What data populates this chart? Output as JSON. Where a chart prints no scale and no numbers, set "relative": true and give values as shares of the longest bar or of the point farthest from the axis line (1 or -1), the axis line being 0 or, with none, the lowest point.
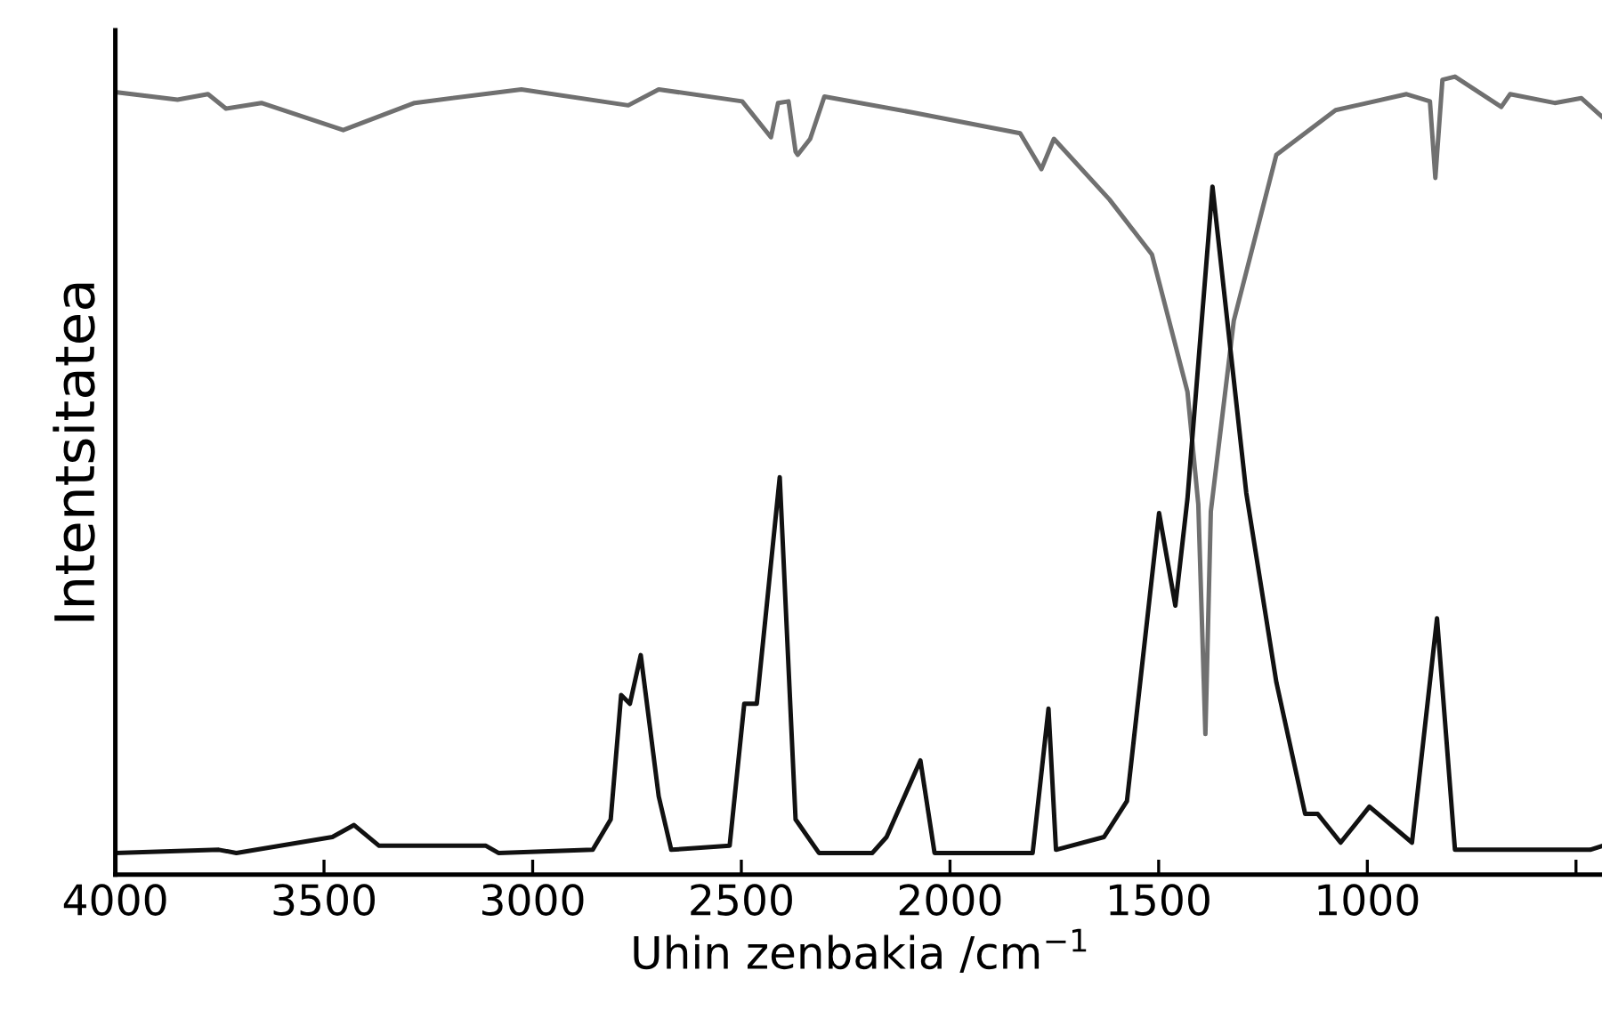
{
  "chart_data": {
    "type": "line",
    "relative": true,
    "xlabel": "Uhin zenbakia /cm$^{−1}$",
    "ylabel": "Intentsitatea",
    "xlim": [
      4000,
      430
    ],
    "xticks": [
      4000,
      3500,
      3000,
      2500,
      2000,
      1500,
      1000,
      {
        "value": 500,
        "label": null
      }
    ],
    "tick_labels": "x",
    "grid": false,
    "legend": false,
    "marker": "none",
    "line_style": "solid",
    "series": [
      {
        "color": "#707070",
        "x": [
          3991,
          3851,
          3778,
          3735,
          3650,
          3454,
          3283,
          3027,
          2771,
          2698,
          2498,
          2429,
          2412,
          2387,
          2370,
          2365,
          2335,
          2301,
          2088,
          1832,
          1781,
          1751,
          1618,
          1516,
          1431,
          1405,
          1388,
          1375,
          1320,
          1218,
          1076,
          906,
          850,
          837,
          820,
          790,
          679,
          658,
          551,
          487,
          436
        ],
        "values": [
          0.98,
          0.971,
          0.978,
          0.96,
          0.967,
          0.933,
          0.967,
          0.984,
          0.964,
          0.984,
          0.969,
          0.924,
          0.967,
          0.969,
          0.906,
          0.902,
          0.922,
          0.975,
          0.955,
          0.929,
          0.884,
          0.922,
          0.846,
          0.777,
          0.605,
          0.464,
          0.176,
          0.455,
          0.694,
          0.902,
          0.958,
          0.978,
          0.969,
          0.873,
          0.996,
          1.0,
          0.962,
          0.978,
          0.967,
          0.973,
          0.949
        ]
      },
      {
        "color": "#111111",
        "x": [
          4000,
          3752,
          3710,
          3480,
          3428,
          3368,
          3112,
          3082,
          2856,
          2813,
          2788,
          2767,
          2741,
          2698,
          2668,
          2528,
          2493,
          2463,
          2408,
          2370,
          2314,
          2186,
          2152,
          2071,
          2037,
          1802,
          1764,
          1746,
          1631,
          1576,
          1499,
          1460,
          1431,
          1371,
          1290,
          1218,
          1149,
          1119,
          1064,
          995,
          893,
          833,
          790,
          466,
          436
        ],
        "values": [
          0.027,
          0.031,
          0.027,
          0.047,
          0.062,
          0.036,
          0.036,
          0.027,
          0.031,
          0.069,
          0.225,
          0.214,
          0.275,
          0.098,
          0.031,
          0.036,
          0.214,
          0.214,
          0.498,
          0.069,
          0.027,
          0.027,
          0.047,
          0.143,
          0.027,
          0.027,
          0.208,
          0.031,
          0.047,
          0.092,
          0.453,
          0.337,
          0.471,
          0.862,
          0.478,
          0.241,
          0.076,
          0.076,
          0.04,
          0.085,
          0.04,
          0.321,
          0.031,
          0.031,
          0.036
        ]
      }
    ]
  }
}
